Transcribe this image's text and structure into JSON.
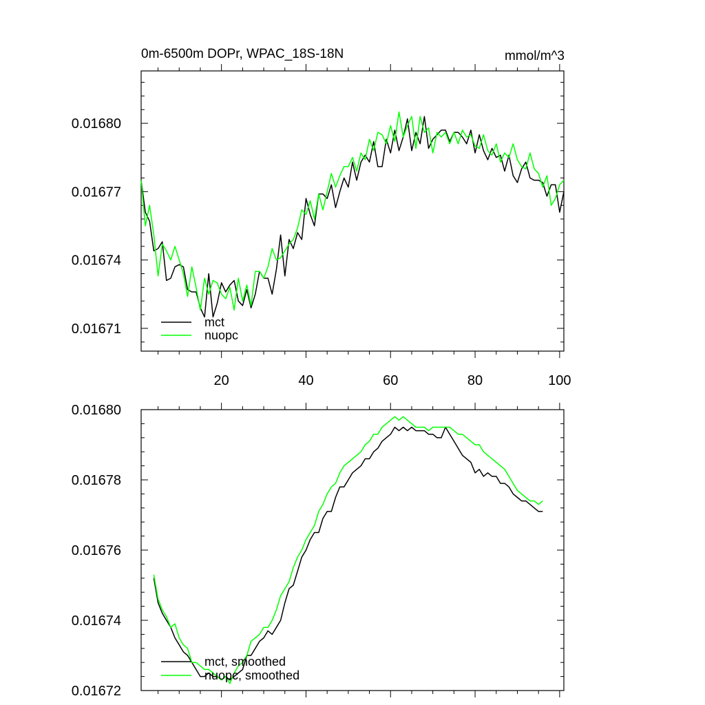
{
  "chart_data": [
    {
      "type": "line",
      "title": "0m-6500m DOPr, WPAC_18S-18N",
      "units": "mmol/m^3",
      "xlim": [
        1,
        101
      ],
      "ylim": [
        0.0167,
        0.016823
      ],
      "x_ticks": [
        20,
        40,
        60,
        80,
        100
      ],
      "y_ticks": [
        0.01671,
        0.01674,
        0.01677,
        0.0168
      ],
      "y_tick_labels": [
        "0.01671",
        "0.01674",
        "0.01677",
        "0.01680"
      ],
      "legend": "bottom-left",
      "series": [
        {
          "name": "mct",
          "color": "#000000",
          "values": [
            0.016775,
            0.016761,
            0.016757,
            0.016744,
            0.016745,
            0.016748,
            0.016731,
            0.016732,
            0.016737,
            0.016738,
            0.016737,
            0.016727,
            0.016726,
            0.016726,
            0.016719,
            0.016715,
            0.016734,
            0.016715,
            0.016721,
            0.01673,
            0.016726,
            0.016729,
            0.016731,
            0.016722,
            0.01672,
            0.016727,
            0.016719,
            0.016725,
            0.016735,
            0.016732,
            0.016732,
            0.016725,
            0.016736,
            0.016751,
            0.016733,
            0.016749,
            0.016745,
            0.016752,
            0.016749,
            0.016767,
            0.01676,
            0.016755,
            0.016769,
            0.016769,
            0.016767,
            0.016773,
            0.016763,
            0.01677,
            0.016776,
            0.016772,
            0.016783,
            0.016775,
            0.016783,
            0.016786,
            0.016783,
            0.016792,
            0.016781,
            0.016781,
            0.016793,
            0.016787,
            0.016797,
            0.016788,
            0.016794,
            0.016802,
            0.016788,
            0.016796,
            0.016791,
            0.016803,
            0.016789,
            0.016793,
            0.016795,
            0.016797,
            0.016797,
            0.016792,
            0.016796,
            0.016796,
            0.016794,
            0.016791,
            0.016797,
            0.016787,
            0.016795,
            0.016788,
            0.016784,
            0.016789,
            0.016785,
            0.016786,
            0.016779,
            0.016786,
            0.016777,
            0.016774,
            0.01678,
            0.016783,
            0.016776,
            0.016775,
            0.016775,
            0.016774,
            0.016768,
            0.016773,
            0.016773,
            0.016761,
            0.01677
          ]
        },
        {
          "name": "nuopc",
          "color": "#00ff00",
          "values": [
            0.016775,
            0.016755,
            0.016764,
            0.016751,
            0.016733,
            0.016747,
            0.016744,
            0.01674,
            0.016746,
            0.01674,
            0.016734,
            0.016724,
            0.016737,
            0.016728,
            0.016718,
            0.016732,
            0.016725,
            0.016731,
            0.01673,
            0.016725,
            0.016723,
            0.016728,
            0.016718,
            0.016732,
            0.016722,
            0.016729,
            0.01672,
            0.016735,
            0.016735,
            0.016732,
            0.016737,
            0.016745,
            0.01674,
            0.016741,
            0.016744,
            0.016747,
            0.016749,
            0.016754,
            0.016762,
            0.01676,
            0.016766,
            0.016758,
            0.016769,
            0.016762,
            0.01677,
            0.016778,
            0.016772,
            0.016777,
            0.016781,
            0.016781,
            0.016785,
            0.016779,
            0.016787,
            0.016784,
            0.016793,
            0.016788,
            0.016796,
            0.016795,
            0.016791,
            0.016799,
            0.016792,
            0.016805,
            0.016794,
            0.016799,
            0.016803,
            0.016789,
            0.016803,
            0.016796,
            0.016798,
            0.016787,
            0.016796,
            0.016794,
            0.016796,
            0.016791,
            0.016796,
            0.016791,
            0.016797,
            0.016794,
            0.016795,
            0.01679,
            0.016789,
            0.016795,
            0.016788,
            0.016786,
            0.016791,
            0.016783,
            0.016787,
            0.016785,
            0.016791,
            0.016784,
            0.016781,
            0.01678,
            0.016787,
            0.01678,
            0.016778,
            0.016772,
            0.016777,
            0.016764,
            0.016767,
            0.016773,
            0.016775
          ]
        }
      ]
    },
    {
      "type": "line",
      "title": "",
      "units": "",
      "xlim": [
        1,
        101
      ],
      "ylim": [
        0.01672,
        0.0168
      ],
      "x_ticks": [
        20,
        40,
        60,
        80,
        100
      ],
      "y_ticks": [
        0.01672,
        0.01674,
        0.01676,
        0.01678,
        0.0168
      ],
      "y_tick_labels": [
        "0.01672",
        "0.01674",
        "0.01676",
        "0.01678",
        "0.01680"
      ],
      "legend": "bottom-left",
      "series": [
        {
          "name": "mct, smoothed",
          "color": "#000000",
          "x_start": 4,
          "values": [
            0.016752,
            0.016745,
            0.016742,
            0.01674,
            0.016738,
            0.016735,
            0.016733,
            0.016731,
            0.01673,
            0.016728,
            0.016726,
            0.016724,
            0.016724,
            0.016725,
            0.016724,
            0.016724,
            0.016723,
            0.016724,
            0.016723,
            0.016724,
            0.016725,
            0.016726,
            0.01673,
            0.01673,
            0.016732,
            0.016734,
            0.016735,
            0.016737,
            0.016736,
            0.016738,
            0.01674,
            0.016745,
            0.016749,
            0.01675,
            0.016754,
            0.016758,
            0.01676,
            0.016763,
            0.016765,
            0.016765,
            0.016769,
            0.016771,
            0.016771,
            0.016775,
            0.016778,
            0.016778,
            0.01678,
            0.016782,
            0.016783,
            0.016784,
            0.016786,
            0.016786,
            0.016788,
            0.016789,
            0.016791,
            0.016792,
            0.016793,
            0.016795,
            0.016794,
            0.016795,
            0.016794,
            0.016795,
            0.016794,
            0.016794,
            0.016794,
            0.016793,
            0.016793,
            0.016792,
            0.016792,
            0.016795,
            0.016793,
            0.016791,
            0.016789,
            0.016787,
            0.016786,
            0.016785,
            0.016782,
            0.016783,
            0.016781,
            0.016782,
            0.016781,
            0.016781,
            0.016779,
            0.016779,
            0.016778,
            0.016776,
            0.016775,
            0.016774,
            0.016774,
            0.016773,
            0.016772,
            0.016771,
            0.016771
          ]
        },
        {
          "name": "nuopc, smoothed",
          "color": "#00ff00",
          "x_start": 4,
          "values": [
            0.016753,
            0.016746,
            0.016743,
            0.016741,
            0.016738,
            0.016739,
            0.016735,
            0.016733,
            0.016732,
            0.016728,
            0.016728,
            0.016727,
            0.016726,
            0.016726,
            0.016725,
            0.016724,
            0.016723,
            0.016724,
            0.016722,
            0.016725,
            0.016727,
            0.016728,
            0.01673,
            0.016734,
            0.016735,
            0.016736,
            0.016738,
            0.016738,
            0.01674,
            0.016743,
            0.016747,
            0.016749,
            0.016751,
            0.016755,
            0.016758,
            0.01676,
            0.016763,
            0.016765,
            0.016767,
            0.016771,
            0.016773,
            0.016776,
            0.016778,
            0.016779,
            0.016782,
            0.016784,
            0.016785,
            0.016786,
            0.016787,
            0.016788,
            0.01679,
            0.016791,
            0.016793,
            0.016793,
            0.016795,
            0.016796,
            0.016797,
            0.016798,
            0.016797,
            0.016798,
            0.016797,
            0.016796,
            0.016795,
            0.016795,
            0.016795,
            0.016794,
            0.016795,
            0.016795,
            0.016795,
            0.016795,
            0.016795,
            0.016794,
            0.016793,
            0.016793,
            0.016792,
            0.016791,
            0.01679,
            0.01679,
            0.016788,
            0.016787,
            0.016786,
            0.016785,
            0.016784,
            0.016783,
            0.016781,
            0.016779,
            0.016777,
            0.016776,
            0.016775,
            0.016774,
            0.016774,
            0.016773,
            0.016774
          ]
        }
      ]
    }
  ]
}
